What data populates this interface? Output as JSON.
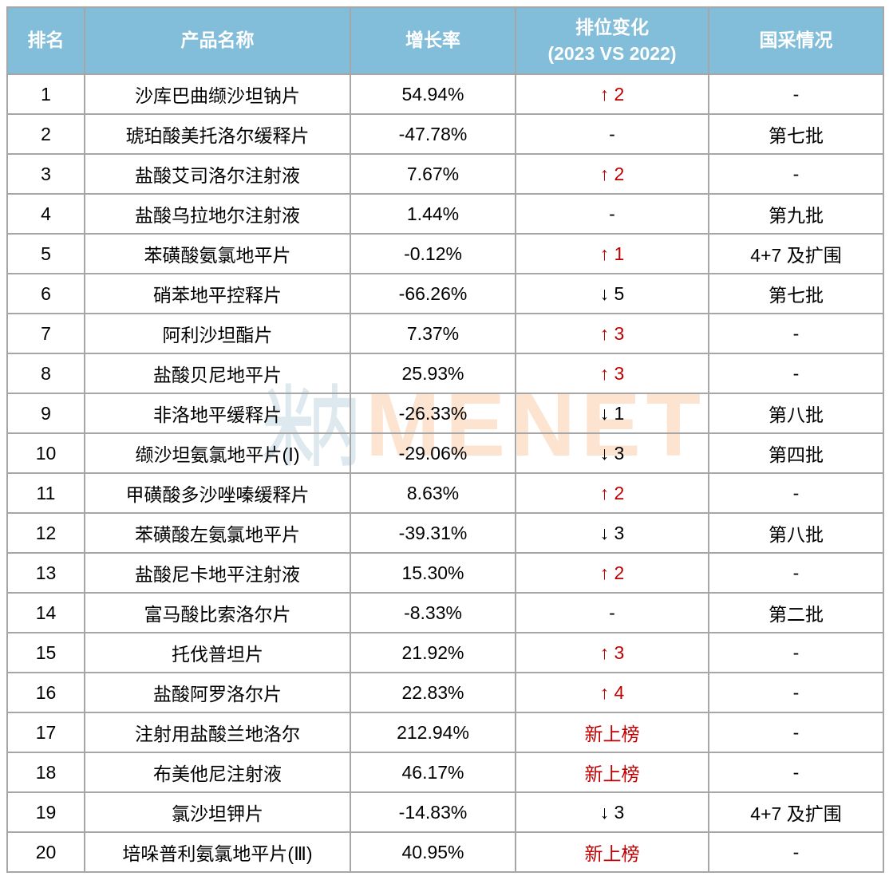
{
  "colors": {
    "header_bg": "#82bdd9",
    "header_text": "#ffffff",
    "up_red": "#c00000",
    "border": "#a6a6a6",
    "watermark_cn": "#dde9ee",
    "watermark_en": "#fce4d0"
  },
  "watermark": {
    "cn": "米内",
    "en": "MENET"
  },
  "table": {
    "columns": [
      {
        "label": "排名"
      },
      {
        "label": "产品名称"
      },
      {
        "label": "增长率"
      },
      {
        "label": "排位变化",
        "sublabel": "(2023 VS 2022)"
      },
      {
        "label": "国采情况"
      }
    ]
  },
  "chart_data": {
    "type": "table",
    "title": "",
    "columns": [
      "排名",
      "产品名称",
      "增长率",
      "排位变化 (2023 VS 2022)",
      "国采情况"
    ],
    "rows": [
      {
        "rank": "1",
        "product": "沙库巴曲缬沙坦钠片",
        "growth": "54.94%",
        "change": "↑ 2",
        "change_color": "red",
        "procurement": "-"
      },
      {
        "rank": "2",
        "product": "琥珀酸美托洛尔缓释片",
        "growth": "-47.78%",
        "change": "-",
        "change_color": "black",
        "procurement": "第七批"
      },
      {
        "rank": "3",
        "product": "盐酸艾司洛尔注射液",
        "growth": "7.67%",
        "change": "↑ 2",
        "change_color": "red",
        "procurement": "-"
      },
      {
        "rank": "4",
        "product": "盐酸乌拉地尔注射液",
        "growth": "1.44%",
        "change": "-",
        "change_color": "black",
        "procurement": "第九批"
      },
      {
        "rank": "5",
        "product": "苯磺酸氨氯地平片",
        "growth": "-0.12%",
        "change": "↑ 1",
        "change_color": "red",
        "procurement": "4+7 及扩围"
      },
      {
        "rank": "6",
        "product": "硝苯地平控释片",
        "growth": "-66.26%",
        "change": "↓ 5",
        "change_color": "black",
        "procurement": "第七批"
      },
      {
        "rank": "7",
        "product": "阿利沙坦酯片",
        "growth": "7.37%",
        "change": "↑ 3",
        "change_color": "red",
        "procurement": "-"
      },
      {
        "rank": "8",
        "product": "盐酸贝尼地平片",
        "growth": "25.93%",
        "change": "↑ 3",
        "change_color": "red",
        "procurement": "-"
      },
      {
        "rank": "9",
        "product": "非洛地平缓释片",
        "growth": "-26.33%",
        "change": "↓ 1",
        "change_color": "black",
        "procurement": "第八批"
      },
      {
        "rank": "10",
        "product": "缬沙坦氨氯地平片(Ⅰ)",
        "growth": "-29.06%",
        "change": "↓ 3",
        "change_color": "black",
        "procurement": "第四批"
      },
      {
        "rank": "11",
        "product": "甲磺酸多沙唑嗪缓释片",
        "growth": "8.63%",
        "change": "↑ 2",
        "change_color": "red",
        "procurement": "-"
      },
      {
        "rank": "12",
        "product": "苯磺酸左氨氯地平片",
        "growth": "-39.31%",
        "change": "↓ 3",
        "change_color": "black",
        "procurement": "第八批"
      },
      {
        "rank": "13",
        "product": "盐酸尼卡地平注射液",
        "growth": "15.30%",
        "change": "↑ 2",
        "change_color": "red",
        "procurement": "-"
      },
      {
        "rank": "14",
        "product": "富马酸比索洛尔片",
        "growth": "-8.33%",
        "change": "-",
        "change_color": "black",
        "procurement": "第二批"
      },
      {
        "rank": "15",
        "product": "托伐普坦片",
        "growth": "21.92%",
        "change": "↑ 3",
        "change_color": "red",
        "procurement": "-"
      },
      {
        "rank": "16",
        "product": "盐酸阿罗洛尔片",
        "growth": "22.83%",
        "change": "↑ 4",
        "change_color": "red",
        "procurement": "-"
      },
      {
        "rank": "17",
        "product": "注射用盐酸兰地洛尔",
        "growth": "212.94%",
        "change": "新上榜",
        "change_color": "red",
        "procurement": "-"
      },
      {
        "rank": "18",
        "product": "布美他尼注射液",
        "growth": "46.17%",
        "change": "新上榜",
        "change_color": "red",
        "procurement": "-"
      },
      {
        "rank": "19",
        "product": "氯沙坦钾片",
        "growth": "-14.83%",
        "change": "↓ 3",
        "change_color": "black",
        "procurement": "4+7 及扩围"
      },
      {
        "rank": "20",
        "product": "培哚普利氨氯地平片(Ⅲ)",
        "growth": "40.95%",
        "change": "新上榜",
        "change_color": "red",
        "procurement": "-"
      }
    ]
  }
}
